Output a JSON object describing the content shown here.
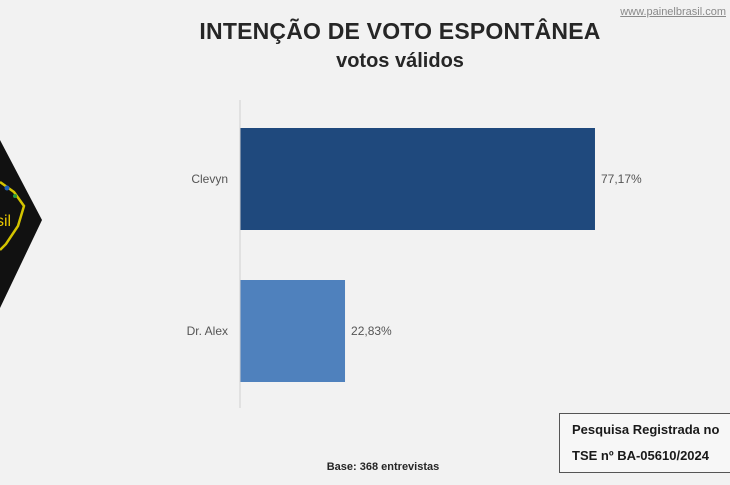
{
  "header": {
    "site_url": "www.painelbrasil.com",
    "title": "INTENÇÃO DE VOTO ESPONTÂNEA",
    "subtitle": "votos válidos"
  },
  "logo": {
    "text": "sil"
  },
  "chart_data": {
    "type": "bar",
    "orientation": "horizontal",
    "categories": [
      "Clevyn",
      "Dr. Alex"
    ],
    "values": [
      77.17,
      22.83
    ],
    "value_labels": [
      "77,17%",
      "22,83%"
    ],
    "colors": [
      "#1f497d",
      "#4f81bd"
    ],
    "xlim": [
      0,
      100
    ],
    "grid": false,
    "legend": "none"
  },
  "footer": {
    "base_note": "Base: 368 entrevistas",
    "registration_line1": "Pesquisa Registrada no",
    "registration_line2": "TSE nº  BA-05610/2024"
  }
}
